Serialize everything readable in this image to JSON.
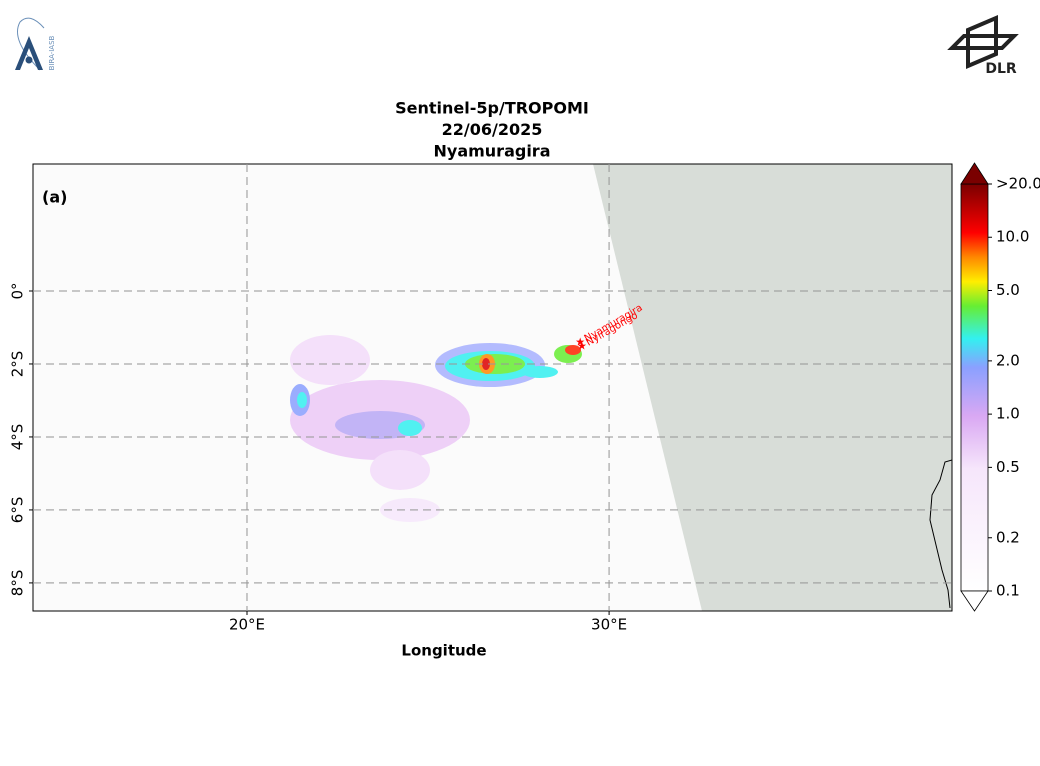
{
  "header": {
    "left_logo": "BIRA-IASB",
    "right_logo": "DLR"
  },
  "map": {
    "title_lines": [
      "Sentinel-5p/TROPOMI",
      "22/06/2025",
      "Nyamuragira"
    ],
    "panel_label": "(a)",
    "xlabel": "Longitude",
    "xlim": [
      14.09,
      39.47
    ],
    "ylim": [
      -8.77,
      3.48
    ],
    "xticks": [
      {
        "value": 20,
        "label": "20°E"
      },
      {
        "value": 30,
        "label": "30°E"
      }
    ],
    "yticks": [
      {
        "value": 0,
        "label": "0°"
      },
      {
        "value": -2,
        "label": "2°S"
      },
      {
        "value": -4,
        "label": "4°S"
      },
      {
        "value": -6,
        "label": "6°S"
      },
      {
        "value": -8,
        "label": "8°S"
      }
    ],
    "grid": true,
    "volcanoes": [
      {
        "name": "Nyamuragira",
        "lon": 29.2,
        "lat": -1.41
      },
      {
        "name": "Nyiragongo",
        "lon": 29.25,
        "lat": -1.52
      }
    ],
    "colorbar": {
      "log": true,
      "lim": [
        0.1,
        20
      ],
      "ticks": [
        {
          "value": 20,
          "label": ">20.0"
        },
        {
          "value": 10,
          "label": "10.0"
        },
        {
          "value": 5,
          "label": "5.0"
        },
        {
          "value": 2,
          "label": "2.0"
        },
        {
          "value": 1,
          "label": "1.0"
        },
        {
          "value": 0.5,
          "label": "0.5"
        },
        {
          "value": 0.2,
          "label": "0.2"
        },
        {
          "value": 0.1,
          "label": "0.1"
        }
      ]
    }
  }
}
